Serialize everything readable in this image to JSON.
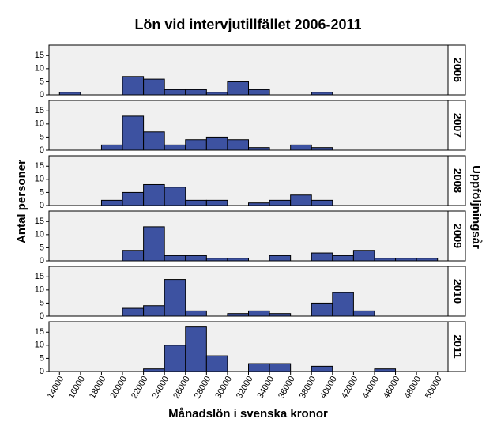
{
  "chart_data": {
    "type": "histogram",
    "title": "Lön vid intervjutillfället 2006-2011",
    "xlabel": "Månadslön i svenska kronor",
    "ylabel": "Antal personer",
    "facet_label": "Uppföljningsår",
    "bins": [
      14000,
      16000,
      18000,
      20000,
      22000,
      24000,
      26000,
      28000,
      30000,
      32000,
      34000,
      36000,
      38000,
      40000,
      42000,
      44000,
      46000,
      48000,
      50000
    ],
    "xlim": [
      13000,
      51000
    ],
    "xticks": [
      14000,
      16000,
      18000,
      20000,
      22000,
      24000,
      26000,
      28000,
      30000,
      32000,
      34000,
      36000,
      38000,
      40000,
      42000,
      44000,
      46000,
      48000,
      50000
    ],
    "ylim": [
      0,
      19
    ],
    "yticks": [
      0,
      5,
      10,
      15
    ],
    "series": [
      {
        "name": "2006",
        "color": "#3d52a1",
        "values": [
          1,
          0,
          0,
          7,
          6,
          2,
          2,
          1,
          5,
          2,
          0,
          0,
          1,
          0,
          0,
          0,
          0,
          0
        ]
      },
      {
        "name": "2007",
        "color": "#3d52a1",
        "values": [
          0,
          0,
          2,
          13,
          7,
          2,
          4,
          5,
          4,
          1,
          0,
          2,
          1,
          0,
          0,
          0,
          0,
          0
        ]
      },
      {
        "name": "2008",
        "color": "#3d52a1",
        "values": [
          0,
          0,
          2,
          5,
          8,
          7,
          2,
          2,
          0,
          1,
          2,
          4,
          2,
          0,
          0,
          0,
          0,
          0
        ]
      },
      {
        "name": "2009",
        "color": "#3d52a1",
        "values": [
          0,
          0,
          0,
          4,
          13,
          2,
          2,
          1,
          1,
          0,
          2,
          0,
          3,
          2,
          4,
          1,
          1,
          1
        ]
      },
      {
        "name": "2010",
        "color": "#3d52a1",
        "values": [
          0,
          0,
          0,
          3,
          4,
          14,
          2,
          0,
          1,
          2,
          1,
          0,
          5,
          9,
          2,
          0,
          0,
          0
        ]
      },
      {
        "name": "2011",
        "color": "#3d52a1",
        "values": [
          0,
          0,
          0,
          0,
          1,
          10,
          17,
          6,
          0,
          3,
          3,
          0,
          2,
          0,
          0,
          1,
          0,
          0
        ]
      }
    ]
  }
}
